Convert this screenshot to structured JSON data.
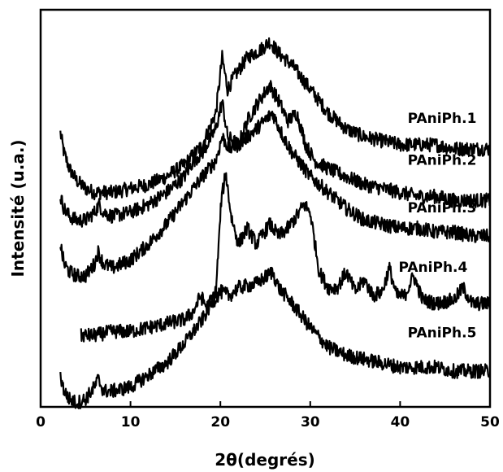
{
  "chart_data": {
    "type": "line",
    "title": "",
    "xlabel": "2θ(degrés)",
    "ylabel": "Intensité (u.a.)",
    "xlim": [
      0,
      50
    ],
    "ylim": [
      0,
      1
    ],
    "xticks": [
      {
        "value": 0,
        "label": "0"
      },
      {
        "value": 10,
        "label": "10"
      },
      {
        "value": 20,
        "label": "20"
      },
      {
        "value": 30,
        "label": "30"
      },
      {
        "value": 40,
        "label": "40"
      },
      {
        "value": 50,
        "label": "50"
      }
    ],
    "y_tick_labels_shown": false,
    "grid": false,
    "noise": 0.018,
    "series": [
      {
        "name": "PAniPh.1",
        "x": [
          2.2,
          2.6,
          3.2,
          4,
          5,
          6,
          8,
          10,
          12,
          14,
          16,
          18,
          19.5,
          20.2,
          20.8,
          21.5,
          23,
          24.5,
          25.5,
          26.5,
          28,
          30,
          32,
          34,
          36,
          38,
          40,
          42,
          44,
          46,
          48,
          50
        ],
        "y": [
          0.69,
          0.64,
          0.6,
          0.57,
          0.55,
          0.54,
          0.54,
          0.55,
          0.56,
          0.58,
          0.61,
          0.66,
          0.74,
          0.88,
          0.8,
          0.83,
          0.88,
          0.9,
          0.92,
          0.89,
          0.86,
          0.8,
          0.74,
          0.7,
          0.68,
          0.67,
          0.66,
          0.66,
          0.66,
          0.65,
          0.65,
          0.65
        ]
      },
      {
        "name": "PAniPh.2",
        "x": [
          2.2,
          2.6,
          3.2,
          4,
          5,
          6,
          6.5,
          7,
          8,
          10,
          12,
          14,
          16,
          17,
          18,
          19.5,
          20.2,
          20.8,
          22,
          23,
          24,
          25.5,
          26.5,
          27.5,
          28.5,
          29.5,
          30.5,
          32,
          34,
          36,
          38,
          40,
          42,
          44,
          46,
          48,
          50
        ],
        "y": [
          0.53,
          0.5,
          0.48,
          0.47,
          0.47,
          0.49,
          0.51,
          0.49,
          0.48,
          0.49,
          0.51,
          0.54,
          0.58,
          0.62,
          0.64,
          0.7,
          0.77,
          0.68,
          0.66,
          0.72,
          0.76,
          0.81,
          0.77,
          0.72,
          0.74,
          0.66,
          0.62,
          0.6,
          0.58,
          0.56,
          0.55,
          0.54,
          0.53,
          0.53,
          0.52,
          0.52,
          0.52
        ]
      },
      {
        "name": "PAniPh.3",
        "x": [
          2.2,
          2.6,
          3.2,
          4,
          5,
          6,
          6.4,
          7,
          8,
          10,
          12,
          14,
          16,
          18,
          19.5,
          20.2,
          21,
          22,
          24,
          25.8,
          27,
          28,
          30,
          32,
          34,
          36,
          38,
          40,
          42,
          44,
          46,
          48,
          50
        ],
        "y": [
          0.41,
          0.36,
          0.34,
          0.33,
          0.33,
          0.36,
          0.39,
          0.36,
          0.35,
          0.37,
          0.41,
          0.46,
          0.52,
          0.58,
          0.62,
          0.68,
          0.65,
          0.66,
          0.7,
          0.74,
          0.68,
          0.64,
          0.58,
          0.54,
          0.5,
          0.47,
          0.46,
          0.45,
          0.45,
          0.44,
          0.44,
          0.43,
          0.43
        ]
      },
      {
        "name": "PAniPh.4",
        "x": [
          4.5,
          6,
          8,
          10,
          12,
          14,
          16,
          17,
          17.8,
          18.5,
          19.5,
          20.1,
          20.6,
          21.2,
          22,
          23,
          24,
          25.5,
          26.5,
          27.5,
          28.5,
          29.3,
          30,
          31,
          32,
          33,
          34,
          35,
          36,
          37,
          38,
          38.8,
          39.6,
          40.5,
          41.5,
          42.5,
          44,
          46,
          47,
          48,
          50
        ],
        "y": [
          0.18,
          0.18,
          0.19,
          0.19,
          0.2,
          0.21,
          0.22,
          0.24,
          0.28,
          0.25,
          0.29,
          0.52,
          0.59,
          0.48,
          0.41,
          0.45,
          0.41,
          0.46,
          0.43,
          0.45,
          0.48,
          0.51,
          0.49,
          0.34,
          0.3,
          0.3,
          0.34,
          0.29,
          0.32,
          0.28,
          0.29,
          0.35,
          0.28,
          0.28,
          0.33,
          0.27,
          0.26,
          0.27,
          0.3,
          0.26,
          0.26
        ]
      },
      {
        "name": "PAniPh.5",
        "x": [
          2.2,
          2.6,
          3.2,
          4,
          5,
          6,
          6.4,
          7,
          8,
          10,
          12,
          14,
          16,
          18,
          19,
          20,
          21,
          22,
          24,
          25.8,
          26.5,
          28,
          30,
          32,
          34,
          36,
          38,
          40,
          42,
          44,
          46,
          48,
          50
        ],
        "y": [
          0.08,
          0.04,
          0.02,
          0.01,
          0.02,
          0.05,
          0.07,
          0.04,
          0.04,
          0.05,
          0.08,
          0.11,
          0.16,
          0.22,
          0.26,
          0.29,
          0.28,
          0.3,
          0.31,
          0.34,
          0.3,
          0.26,
          0.2,
          0.15,
          0.13,
          0.12,
          0.11,
          0.1,
          0.1,
          0.1,
          0.09,
          0.09,
          0.09
        ]
      }
    ],
    "series_labels": [
      {
        "text": "PAniPh.1",
        "anchor_x": 48.5,
        "anchor_y": 0.715
      },
      {
        "text": "PAniPh.2",
        "anchor_x": 48.5,
        "anchor_y": 0.61
      },
      {
        "text": "PAniPh.3",
        "anchor_x": 48.5,
        "anchor_y": 0.49
      },
      {
        "text": "PAniPh.4",
        "anchor_x": 47.5,
        "anchor_y": 0.34
      },
      {
        "text": "PAniPh.5",
        "anchor_x": 48.5,
        "anchor_y": 0.175
      }
    ]
  }
}
